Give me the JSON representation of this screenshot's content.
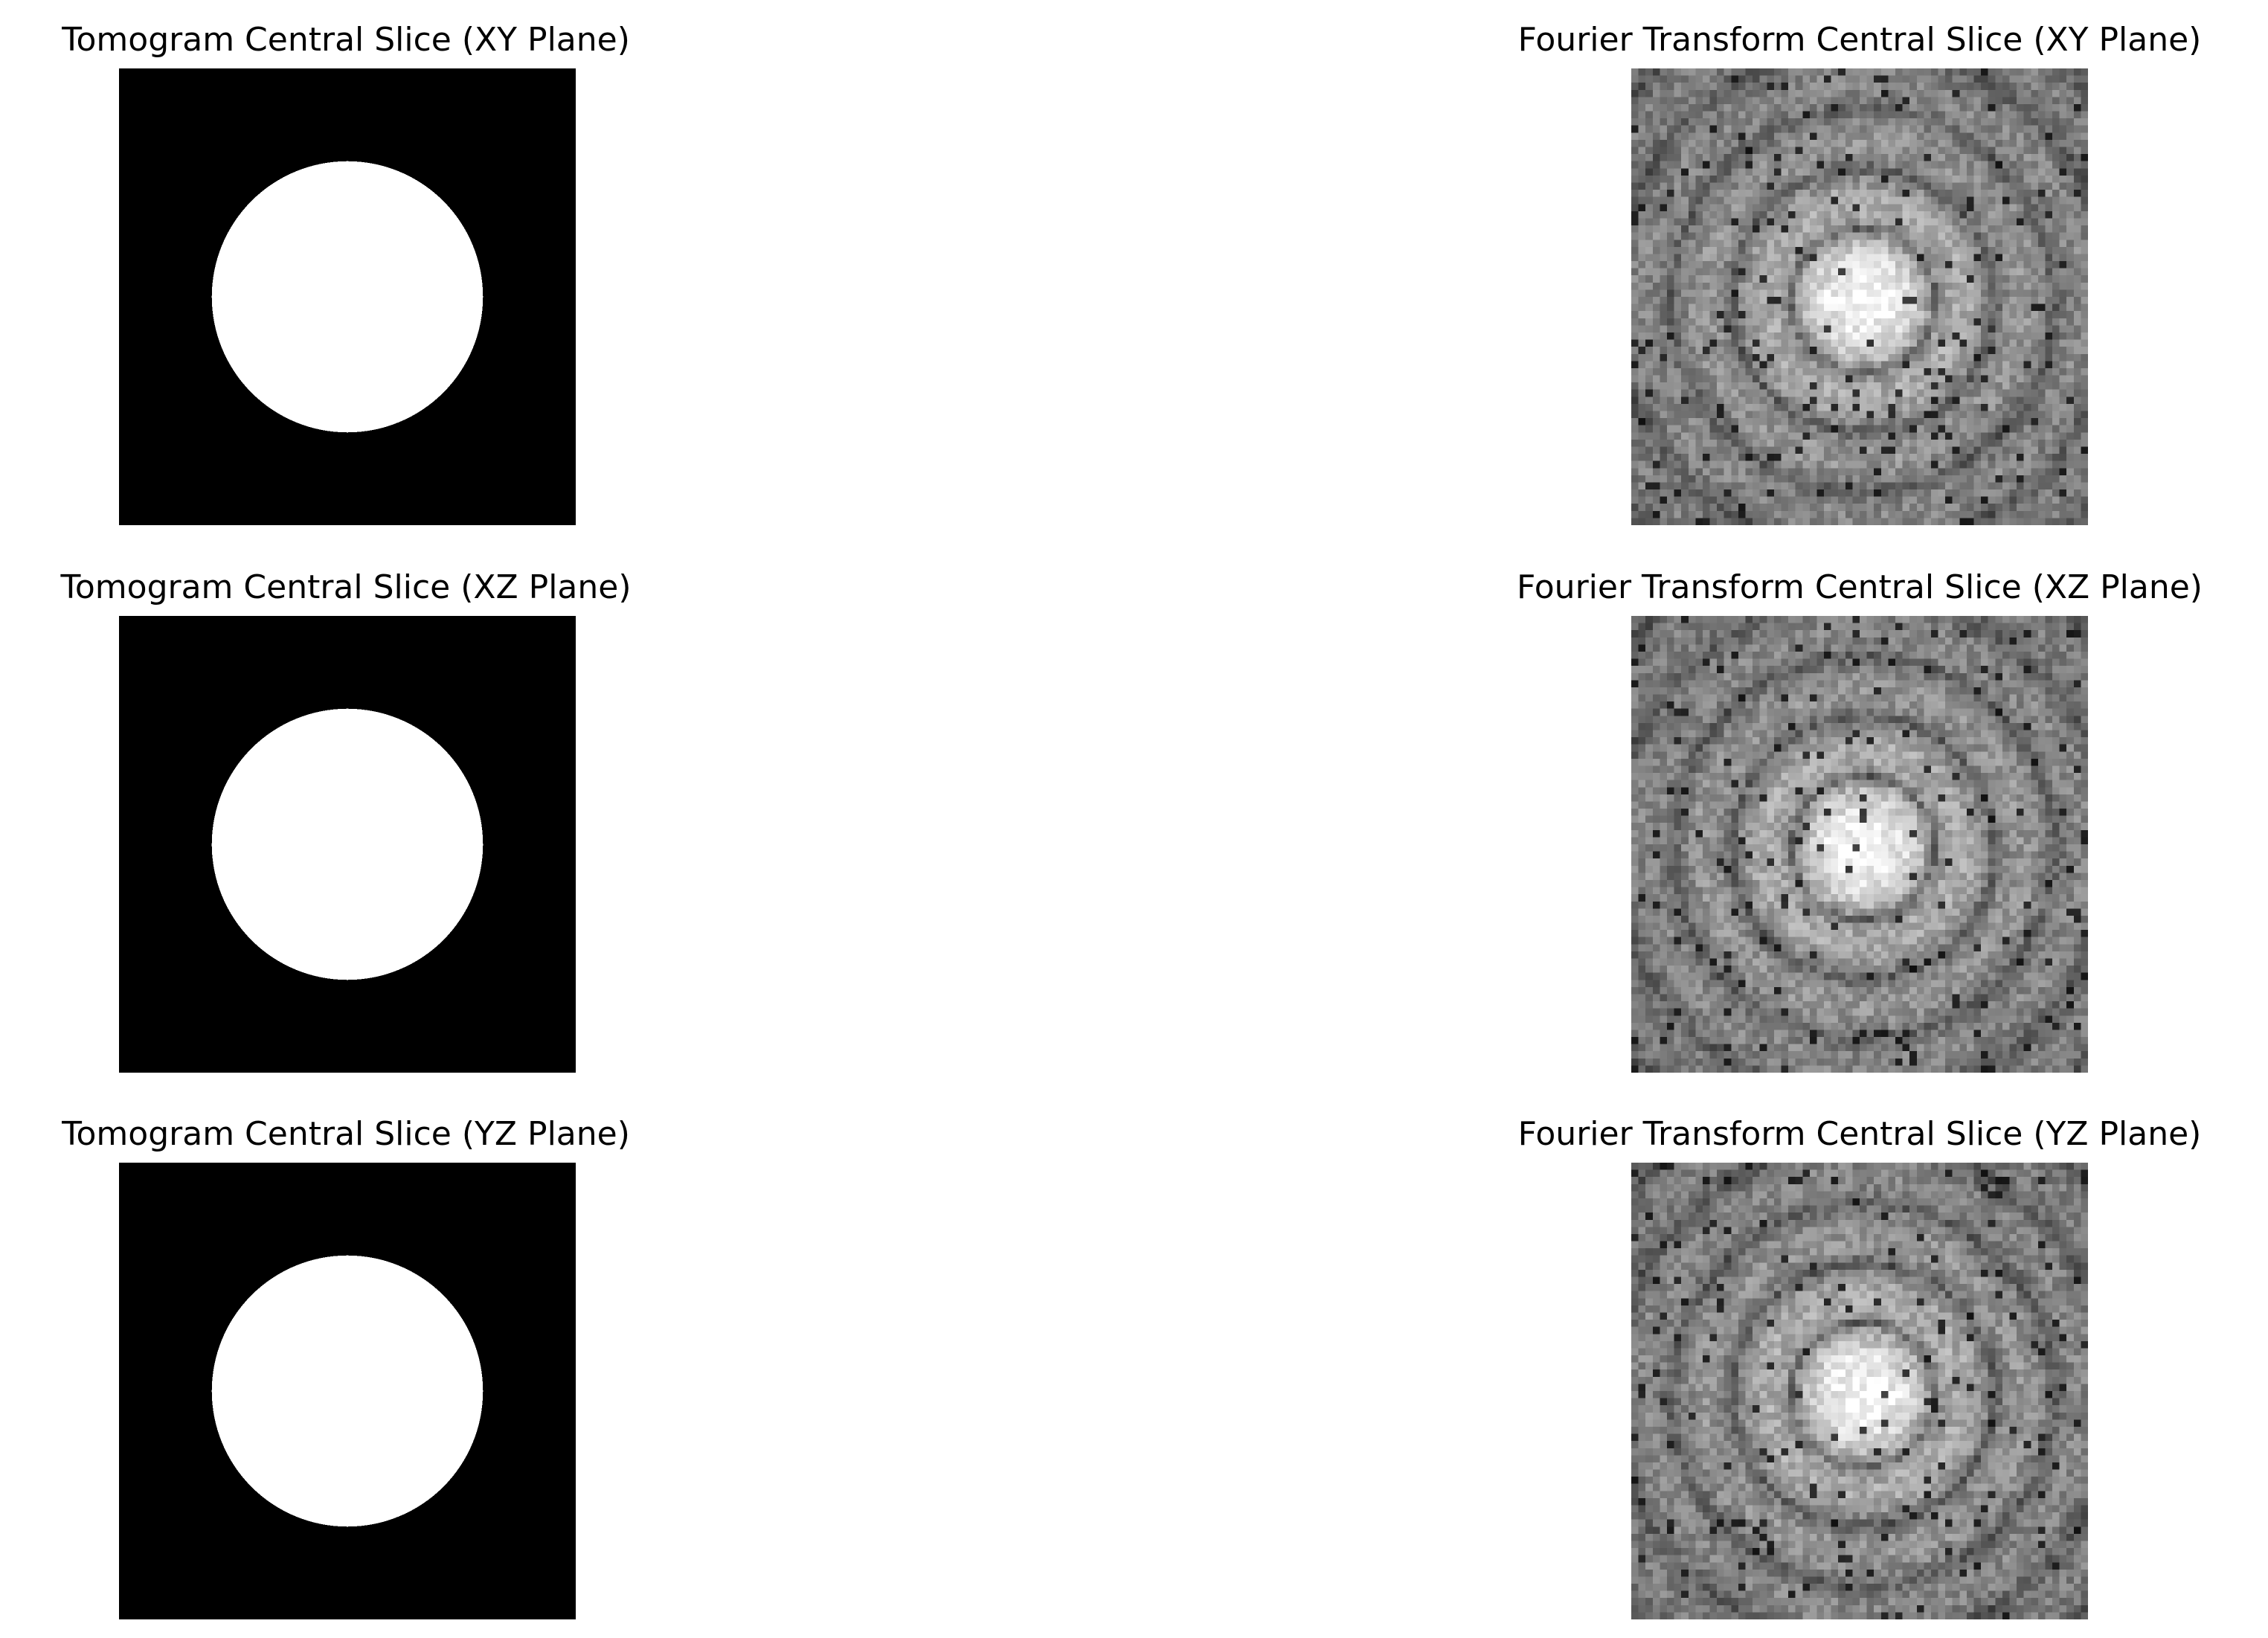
{
  "figure": {
    "panels": [
      {
        "title": "Tomogram Central Slice (XY Plane)",
        "kind": "tomogram"
      },
      {
        "title": "Fourier Transform Central Slice (XY Plane)",
        "kind": "fourier"
      },
      {
        "title": "Tomogram Central Slice (XZ Plane)",
        "kind": "tomogram"
      },
      {
        "title": "Fourier Transform Central Slice (XZ Plane)",
        "kind": "fourier"
      },
      {
        "title": "Tomogram Central Slice (YZ Plane)",
        "kind": "tomogram"
      },
      {
        "title": "Fourier Transform Central Slice (YZ Plane)",
        "kind": "fourier"
      }
    ],
    "colors": {
      "background": "#ffffff",
      "object": "#ffffff",
      "void": "#000000"
    }
  }
}
